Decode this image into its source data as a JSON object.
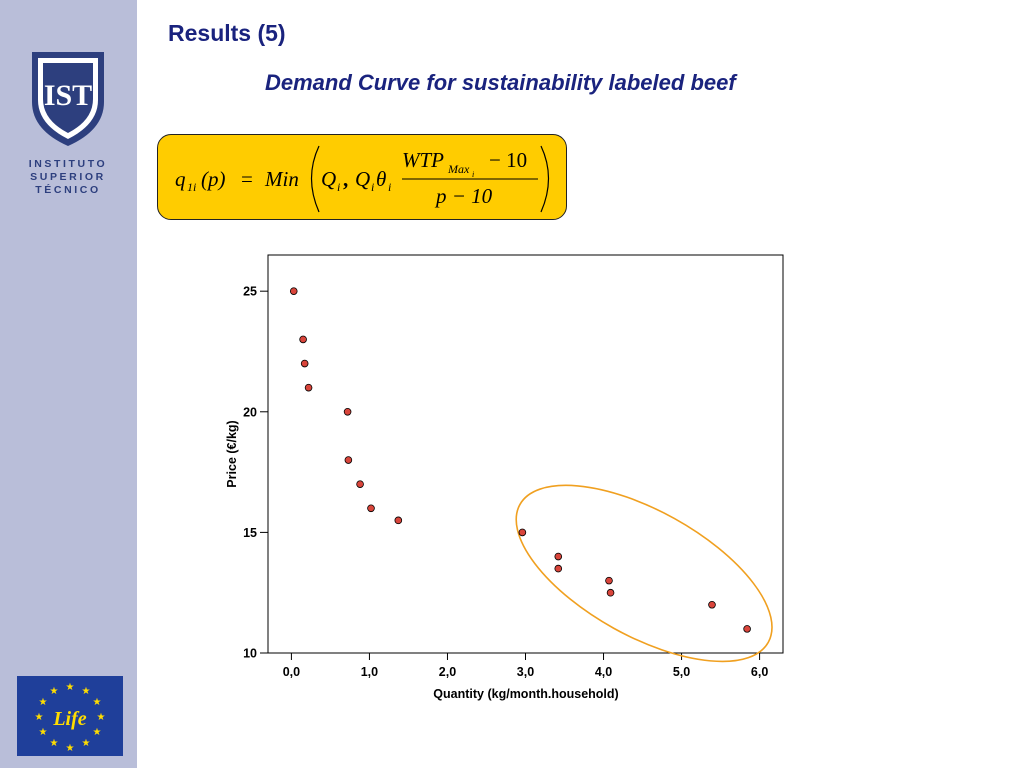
{
  "slide": {
    "title": "Results (5)",
    "subtitle": "Demand Curve for sustainability labeled beef"
  },
  "logo": {
    "monogram": "IST",
    "lines": [
      "INSTITUTO",
      "SUPERIOR",
      "TÉCNICO"
    ]
  },
  "eu_logo": {
    "text": "Life"
  },
  "formula": {
    "lhs_q": "q",
    "lhs_sub": "1i",
    "lhs_arg": "(p)",
    "eq": "=",
    "min": "Min",
    "Q": "Q",
    "i": "i",
    "comma": ",",
    "theta": "θ",
    "num_wtp": "WTP",
    "num_sub": "Max",
    "num_minus": "− 10",
    "den": "p − 10"
  },
  "colors": {
    "sidebar": "#b9bed9",
    "title": "#1a237e",
    "formula_bg": "#ffcc00",
    "point_fill": "#d9453b",
    "ellipse": "#f0a020"
  },
  "chart_data": {
    "type": "scatter",
    "xlabel": "Quantity (kg/month.household)",
    "ylabel": "Price (€/kg)",
    "xlim": [
      -0.3,
      6.3
    ],
    "ylim": [
      10,
      26.5
    ],
    "x_ticks": [
      0.0,
      1.0,
      2.0,
      3.0,
      4.0,
      5.0,
      6.0
    ],
    "x_tick_labels": [
      "0,0",
      "1,0",
      "2,0",
      "3,0",
      "4,0",
      "5,0",
      "6,0"
    ],
    "y_ticks": [
      10,
      15,
      20,
      25
    ],
    "y_tick_labels": [
      "10",
      "15",
      "20",
      "25"
    ],
    "grid": false,
    "points": [
      {
        "x": 0.03,
        "y": 25
      },
      {
        "x": 0.15,
        "y": 23
      },
      {
        "x": 0.17,
        "y": 22
      },
      {
        "x": 0.22,
        "y": 21
      },
      {
        "x": 0.72,
        "y": 20
      },
      {
        "x": 0.73,
        "y": 18
      },
      {
        "x": 0.88,
        "y": 17
      },
      {
        "x": 1.02,
        "y": 16
      },
      {
        "x": 1.37,
        "y": 15.5
      },
      {
        "x": 2.96,
        "y": 15
      },
      {
        "x": 3.42,
        "y": 14
      },
      {
        "x": 3.42,
        "y": 13.5
      },
      {
        "x": 4.07,
        "y": 13
      },
      {
        "x": 4.09,
        "y": 12.5
      },
      {
        "x": 5.39,
        "y": 12
      },
      {
        "x": 5.84,
        "y": 11
      }
    ],
    "highlight_region": {
      "x_center": 4.52,
      "y_center": 13.3,
      "x_radius": 1.82,
      "y_radius": 2.6,
      "note_shape": "ellipse"
    }
  }
}
